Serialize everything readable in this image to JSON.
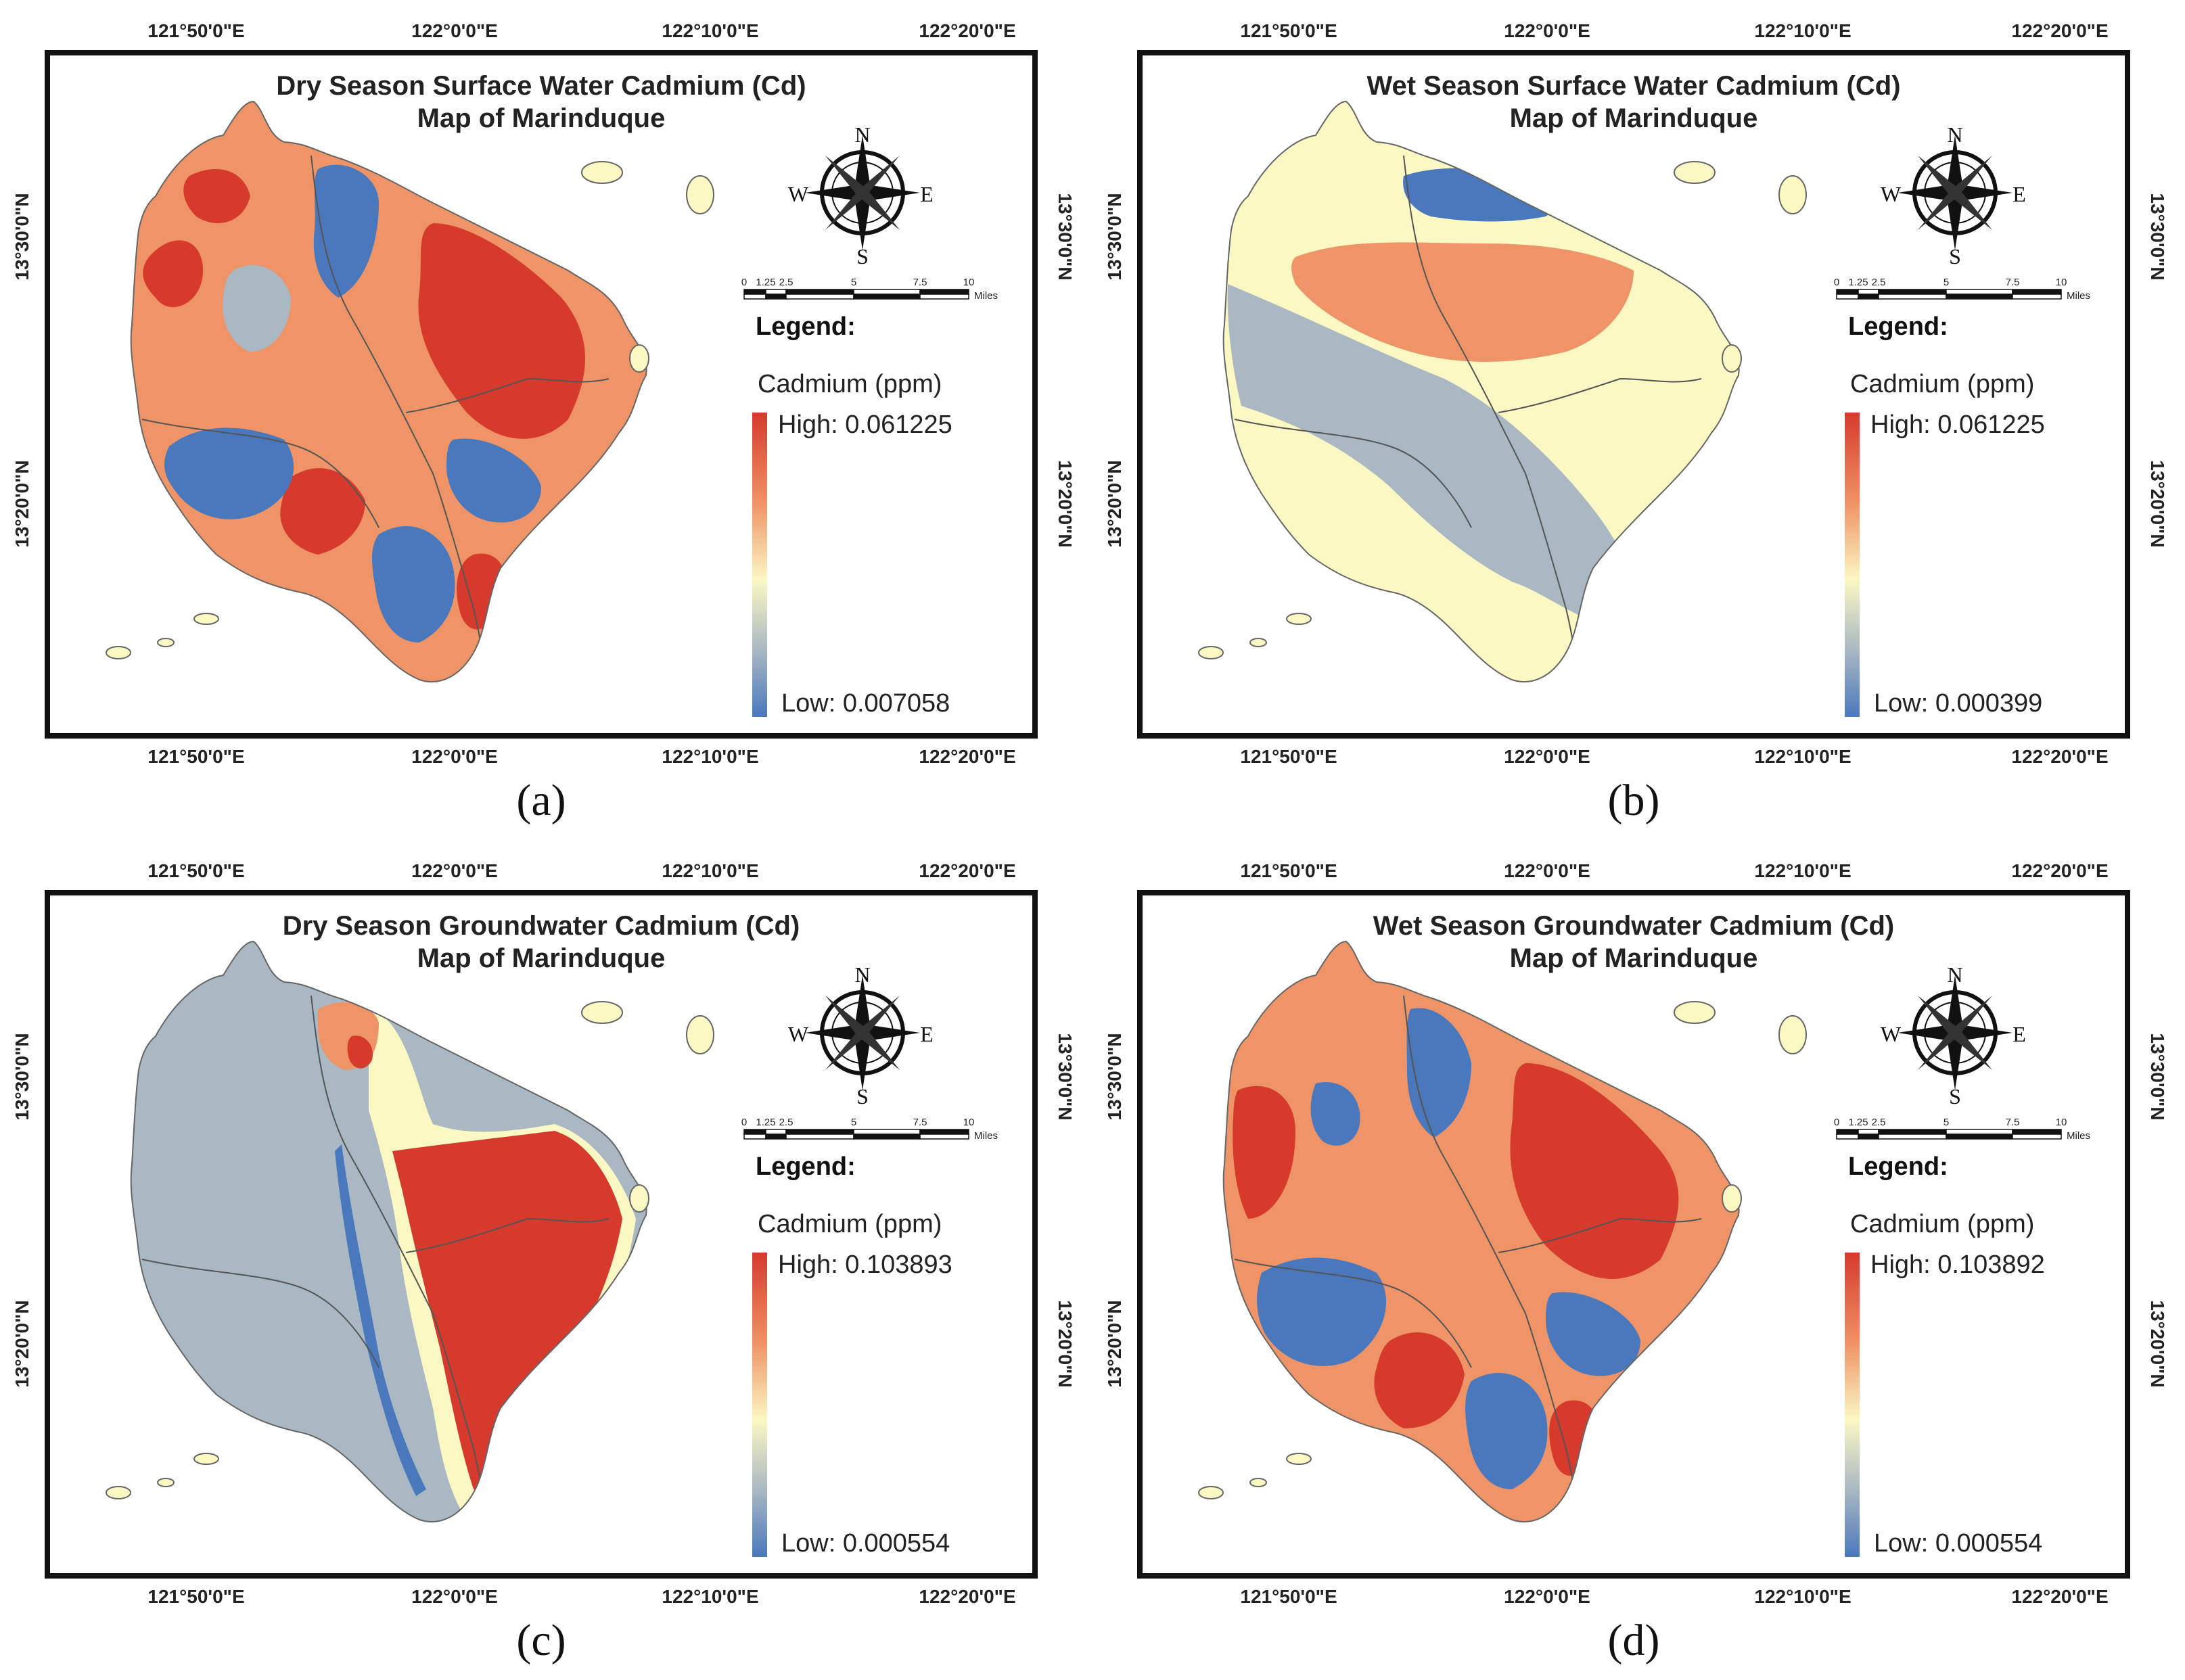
{
  "panels": [
    {
      "id": "a",
      "caption": "(a)",
      "title_line1": "Dry Season Surface Water Cadmium (Cd)",
      "title_line2": "Map of Marinduque",
      "legend_title": "Legend:",
      "legend_subtitle": "Cadmium (ppm)",
      "high": "High: 0.061225",
      "low": "Low: 0.007058",
      "pattern": "mixed-a"
    },
    {
      "id": "b",
      "caption": "(b)",
      "title_line1": "Wet Season Surface Water Cadmium (Cd)",
      "title_line2": "Map of Marinduque",
      "legend_title": "Legend:",
      "legend_subtitle": "Cadmium (ppm)",
      "high": "High: 0.061225",
      "low": "Low: 0.000399",
      "pattern": "smooth-b"
    },
    {
      "id": "c",
      "caption": "(c)",
      "title_line1": "Dry Season Groundwater Cadmium (Cd)",
      "title_line2": "Map of Marinduque",
      "legend_title": "Legend:",
      "legend_subtitle": "Cadmium (ppm)",
      "high": "High: 0.103893",
      "low": "Low: 0.000554",
      "pattern": "split-c"
    },
    {
      "id": "d",
      "caption": "(d)",
      "title_line1": "Wet Season Groundwater Cadmium (Cd)",
      "title_line2": "Map of Marinduque",
      "legend_title": "Legend:",
      "legend_subtitle": "Cadmium (ppm)",
      "high": "High: 0.103892",
      "low": "Low: 0.000554",
      "pattern": "mixed-d"
    }
  ],
  "longitude_ticks": [
    "121°50'0\"E",
    "122°0'0\"E",
    "122°10'0\"E",
    "122°20'0\"E"
  ],
  "latitude_ticks": [
    "13°30'0\"N",
    "13°20'0\"N"
  ],
  "compass": {
    "n": "N",
    "s": "S",
    "e": "E",
    "w": "W"
  },
  "scale_bar": {
    "labels": [
      "0",
      "1.25",
      "2.5",
      "5",
      "7.5",
      "10"
    ],
    "unit": "Miles"
  },
  "colors": {
    "high": "#d63a2c",
    "orange": "#ef9466",
    "yellow": "#fbf8c4",
    "gray": "#a9b8c2",
    "low": "#4a78bd",
    "frame": "#111111"
  }
}
